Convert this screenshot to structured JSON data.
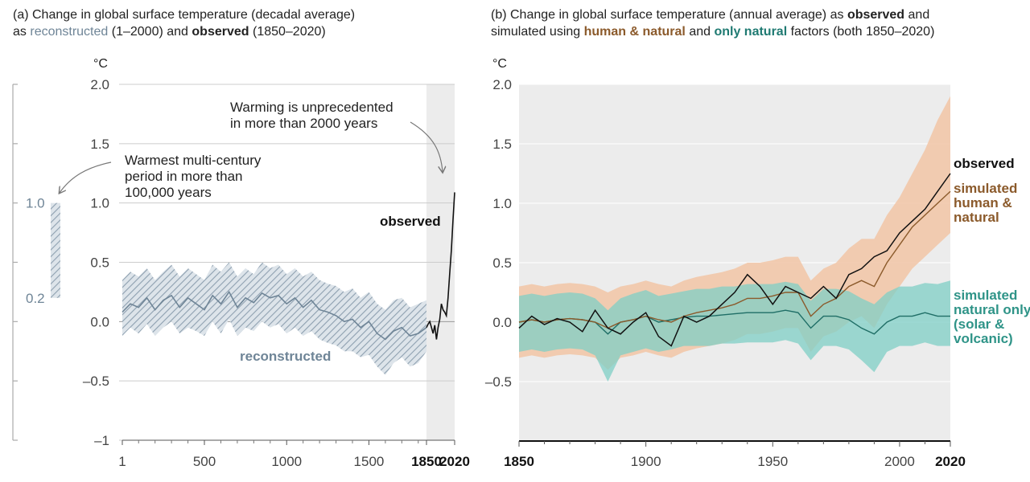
{
  "panel_a": {
    "title_prefix": "(a) Change in global surface temperature (decadal average)",
    "title_as": "as",
    "title_reconstructed": "reconstructed",
    "title_mid": "(1–2000) and",
    "title_observed": "observed",
    "title_suffix": "(1850–2020)"
  },
  "panel_b": {
    "title_prefix": "(b) Change in global surface temperature (annual average) as",
    "title_observed": "observed",
    "title_and1": "and",
    "title_simulated": "simulated using",
    "title_human": "human & natural",
    "title_and2": "and",
    "title_natural": "only natural",
    "title_suffix": "factors (both 1850–2020)"
  },
  "colors": {
    "reconstructed": "#6f8597",
    "band_a": "#b9c6d2",
    "observed": "#111111",
    "human": "#8b5a2b",
    "human_band": "#f2c6a6",
    "natural": "#1f6e66",
    "natural_band": "#7fcfc5",
    "shade": "#ececec",
    "grid": "#cccccc"
  },
  "chart_data": [
    {
      "type": "line",
      "title": "Change in global surface temperature (decadal average) as reconstructed (1–2000) and observed (1850–2020)",
      "ylabel": "°C",
      "ylim": [
        -1,
        2
      ],
      "yticks": [
        "2.0",
        "1.5",
        "1.0",
        "0.5",
        "0.0",
        "–0.5",
        "–1"
      ],
      "xlim": [
        1,
        2020
      ],
      "xticks": [
        "1",
        "500",
        "1000",
        "1500",
        "1850",
        "2020"
      ],
      "shaded_period": [
        1850,
        2020
      ],
      "series": [
        {
          "name": "reconstructed",
          "x": [
            1,
            50,
            100,
            150,
            200,
            250,
            300,
            350,
            400,
            450,
            500,
            550,
            600,
            650,
            700,
            750,
            800,
            850,
            900,
            950,
            1000,
            1050,
            1100,
            1150,
            1200,
            1250,
            1300,
            1350,
            1400,
            1450,
            1500,
            1550,
            1600,
            1650,
            1700,
            1750,
            1800,
            1850
          ],
          "values": [
            0.08,
            0.15,
            0.12,
            0.2,
            0.1,
            0.18,
            0.22,
            0.12,
            0.2,
            0.15,
            0.1,
            0.22,
            0.15,
            0.25,
            0.12,
            0.2,
            0.16,
            0.24,
            0.2,
            0.22,
            0.15,
            0.2,
            0.12,
            0.18,
            0.1,
            0.08,
            0.05,
            0.0,
            0.02,
            -0.05,
            0.0,
            -0.1,
            -0.15,
            -0.08,
            -0.05,
            -0.12,
            -0.1,
            -0.05
          ],
          "lower": [
            -0.12,
            -0.05,
            -0.1,
            -0.02,
            -0.12,
            -0.05,
            0.0,
            -0.1,
            -0.05,
            -0.08,
            -0.12,
            0.0,
            -0.1,
            0.02,
            -0.12,
            -0.05,
            -0.08,
            0.0,
            -0.05,
            -0.02,
            -0.1,
            -0.05,
            -0.12,
            -0.08,
            -0.15,
            -0.18,
            -0.2,
            -0.25,
            -0.25,
            -0.3,
            -0.28,
            -0.38,
            -0.45,
            -0.35,
            -0.3,
            -0.38,
            -0.35,
            -0.25
          ],
          "upper": [
            0.35,
            0.42,
            0.38,
            0.45,
            0.35,
            0.42,
            0.48,
            0.38,
            0.45,
            0.4,
            0.35,
            0.48,
            0.42,
            0.5,
            0.38,
            0.45,
            0.4,
            0.5,
            0.45,
            0.48,
            0.4,
            0.45,
            0.38,
            0.42,
            0.35,
            0.32,
            0.3,
            0.25,
            0.28,
            0.2,
            0.25,
            0.15,
            0.1,
            0.18,
            0.2,
            0.12,
            0.15,
            0.18
          ]
        },
        {
          "name": "observed",
          "x": [
            1850,
            1860,
            1870,
            1880,
            1890,
            1900,
            1910,
            1920,
            1930,
            1940,
            1950,
            1960,
            1970,
            1980,
            1990,
            2000,
            2010,
            2020
          ],
          "values": [
            -0.05,
            -0.02,
            0.0,
            -0.05,
            -0.1,
            -0.03,
            -0.15,
            -0.05,
            0.02,
            0.15,
            0.1,
            0.08,
            0.05,
            0.2,
            0.4,
            0.6,
            0.85,
            1.09
          ]
        }
      ],
      "annotations": [
        "Warming is unprecedented",
        "in more than 2000 years",
        "Warmest multi-century",
        "period in more than",
        "100,000 years",
        "observed",
        "reconstructed"
      ],
      "side_bar": {
        "top_label": "1.0",
        "bottom_label": "0.2",
        "range": [
          0.2,
          1.0
        ]
      }
    },
    {
      "type": "line",
      "title": "Change in global surface temperature (annual average) as observed and simulated using human & natural and only natural factors (both 1850–2020)",
      "ylabel": "°C",
      "ylim": [
        -1,
        2
      ],
      "yticks": [
        "2.0",
        "1.5",
        "1.0",
        "0.5",
        "0.0",
        "–0.5"
      ],
      "xlim": [
        1850,
        2020
      ],
      "xticks": [
        "1850",
        "1900",
        "1950",
        "2000",
        "2020"
      ],
      "x": [
        1850,
        1855,
        1860,
        1865,
        1870,
        1875,
        1880,
        1885,
        1890,
        1895,
        1900,
        1905,
        1910,
        1915,
        1920,
        1925,
        1930,
        1935,
        1940,
        1945,
        1950,
        1955,
        1960,
        1965,
        1970,
        1975,
        1980,
        1985,
        1990,
        1995,
        2000,
        2005,
        2010,
        2015,
        2020
      ],
      "series": [
        {
          "name": "observed",
          "values": [
            -0.05,
            0.05,
            -0.02,
            0.03,
            0.0,
            -0.08,
            0.1,
            -0.05,
            -0.1,
            0.0,
            0.08,
            -0.12,
            -0.2,
            0.05,
            0.0,
            0.05,
            0.15,
            0.25,
            0.4,
            0.3,
            0.15,
            0.3,
            0.25,
            0.2,
            0.3,
            0.2,
            0.4,
            0.45,
            0.55,
            0.6,
            0.75,
            0.85,
            0.95,
            1.1,
            1.25
          ]
        },
        {
          "name": "simulated human & natural",
          "values": [
            0.0,
            0.02,
            0.0,
            0.02,
            0.03,
            0.02,
            0.0,
            -0.05,
            0.0,
            0.02,
            0.05,
            0.02,
            0.0,
            0.05,
            0.08,
            0.1,
            0.12,
            0.15,
            0.2,
            0.2,
            0.22,
            0.25,
            0.25,
            0.05,
            0.15,
            0.2,
            0.3,
            0.35,
            0.3,
            0.5,
            0.65,
            0.8,
            0.9,
            1.0,
            1.1
          ],
          "lower": [
            -0.3,
            -0.28,
            -0.3,
            -0.28,
            -0.27,
            -0.28,
            -0.3,
            -0.4,
            -0.3,
            -0.28,
            -0.25,
            -0.28,
            -0.3,
            -0.25,
            -0.22,
            -0.2,
            -0.18,
            -0.15,
            -0.1,
            -0.1,
            -0.08,
            -0.05,
            -0.05,
            -0.25,
            -0.12,
            -0.08,
            0.0,
            0.05,
            -0.05,
            0.15,
            0.3,
            0.45,
            0.55,
            0.65,
            0.75
          ],
          "upper": [
            0.3,
            0.32,
            0.3,
            0.32,
            0.33,
            0.32,
            0.3,
            0.25,
            0.3,
            0.32,
            0.35,
            0.32,
            0.3,
            0.35,
            0.38,
            0.4,
            0.42,
            0.45,
            0.5,
            0.5,
            0.52,
            0.55,
            0.55,
            0.35,
            0.45,
            0.5,
            0.62,
            0.7,
            0.7,
            0.9,
            1.05,
            1.25,
            1.45,
            1.7,
            1.9
          ]
        },
        {
          "name": "simulated natural only (solar & volcanic)",
          "values": [
            0.0,
            0.02,
            0.0,
            0.02,
            0.03,
            0.02,
            0.0,
            -0.1,
            0.0,
            0.02,
            0.05,
            0.0,
            0.02,
            0.04,
            0.05,
            0.05,
            0.06,
            0.07,
            0.08,
            0.08,
            0.08,
            0.1,
            0.08,
            -0.05,
            0.05,
            0.05,
            0.02,
            -0.05,
            -0.1,
            0.0,
            0.05,
            0.05,
            0.08,
            0.05,
            0.05
          ],
          "lower": [
            -0.25,
            -0.23,
            -0.25,
            -0.23,
            -0.22,
            -0.23,
            -0.28,
            -0.5,
            -0.28,
            -0.25,
            -0.22,
            -0.25,
            -0.23,
            -0.2,
            -0.2,
            -0.2,
            -0.18,
            -0.18,
            -0.17,
            -0.17,
            -0.17,
            -0.15,
            -0.18,
            -0.32,
            -0.2,
            -0.2,
            -0.23,
            -0.32,
            -0.42,
            -0.25,
            -0.2,
            -0.2,
            -0.17,
            -0.2,
            -0.2
          ],
          "upper": [
            0.22,
            0.24,
            0.22,
            0.24,
            0.25,
            0.24,
            0.2,
            0.1,
            0.2,
            0.24,
            0.27,
            0.22,
            0.24,
            0.26,
            0.28,
            0.28,
            0.3,
            0.3,
            0.32,
            0.32,
            0.32,
            0.34,
            0.32,
            0.18,
            0.28,
            0.28,
            0.26,
            0.2,
            0.15,
            0.25,
            0.3,
            0.3,
            0.33,
            0.32,
            0.35
          ]
        }
      ],
      "legend": [
        "observed",
        "simulated",
        "human &",
        "natural",
        "simulated",
        "natural only",
        "(solar &",
        "volcanic)"
      ]
    }
  ]
}
